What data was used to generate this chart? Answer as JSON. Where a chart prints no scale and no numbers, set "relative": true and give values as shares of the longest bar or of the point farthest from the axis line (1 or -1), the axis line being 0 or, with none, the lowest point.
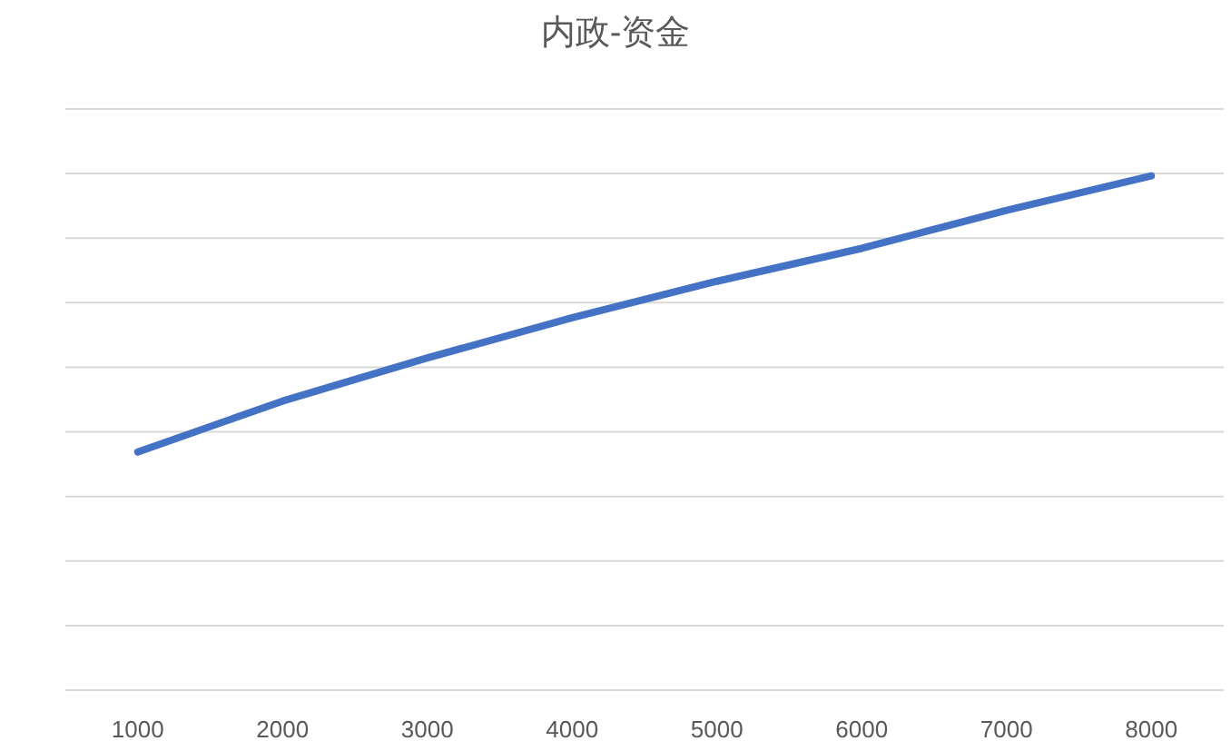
{
  "chart_data": {
    "type": "line",
    "title": "内政-资金",
    "categories": [
      "1000",
      "2000",
      "3000",
      "4000",
      "5000",
      "6000",
      "7000",
      "8000"
    ],
    "relative": true,
    "series": [
      {
        "color": "#4472c4",
        "values": [
          0.463,
          0.562,
          0.646,
          0.724,
          0.795,
          0.859,
          0.933,
          1
        ]
      }
    ],
    "grid": "y"
  }
}
